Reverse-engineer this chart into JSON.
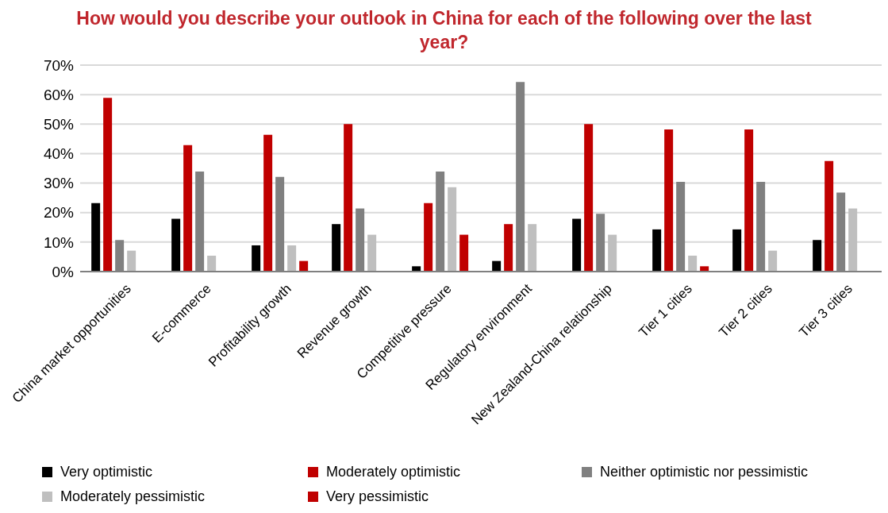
{
  "chart_data": {
    "type": "bar",
    "title": "How would you describe your outlook in China for each of the following over the last year?",
    "categories": [
      "China market opportunities",
      "E-commerce",
      "Profitability growth",
      "Revenue growth",
      "Competitive pressure",
      "Regulatory environment",
      "New Zealand-China relationship",
      "Tier 1 cities",
      "Tier 2 cities",
      "Tier 3 cities"
    ],
    "series": [
      {
        "name": "Very optimistic",
        "color": "#000000",
        "values": [
          23.2,
          17.9,
          8.9,
          16.1,
          1.8,
          3.6,
          17.9,
          14.3,
          14.3,
          10.7
        ]
      },
      {
        "name": "Moderately optimistic",
        "color": "#c00000",
        "values": [
          58.9,
          42.9,
          46.4,
          50,
          23.2,
          16.1,
          50,
          48.2,
          48.2,
          37.5
        ]
      },
      {
        "name": "Neither optimistic nor pessimistic",
        "color": "#808080",
        "values": [
          10.7,
          33.9,
          32.1,
          21.4,
          33.9,
          64.3,
          19.6,
          30.4,
          30.4,
          26.8
        ]
      },
      {
        "name": "Moderately pessimistic",
        "color": "#bfbfbf",
        "values": [
          7.1,
          5.4,
          8.9,
          12.5,
          28.6,
          16.1,
          12.5,
          5.4,
          7.1,
          21.4
        ]
      },
      {
        "name": "Very pessimistic",
        "color": "#c00000",
        "values": [
          0,
          0,
          3.6,
          0,
          12.5,
          0,
          0,
          1.8,
          0,
          0
        ]
      }
    ],
    "ylim": [
      0,
      70
    ],
    "yticks": [
      {
        "value": 0,
        "label": "0%"
      },
      {
        "value": 10,
        "label": "10%"
      },
      {
        "value": 20,
        "label": "20%"
      },
      {
        "value": 30,
        "label": "30%"
      },
      {
        "value": 40,
        "label": "40%"
      },
      {
        "value": 50,
        "label": "50%"
      },
      {
        "value": 60,
        "label": "60%"
      },
      {
        "value": 70,
        "label": "70%"
      }
    ],
    "grid": "y",
    "legend": "bottom"
  }
}
